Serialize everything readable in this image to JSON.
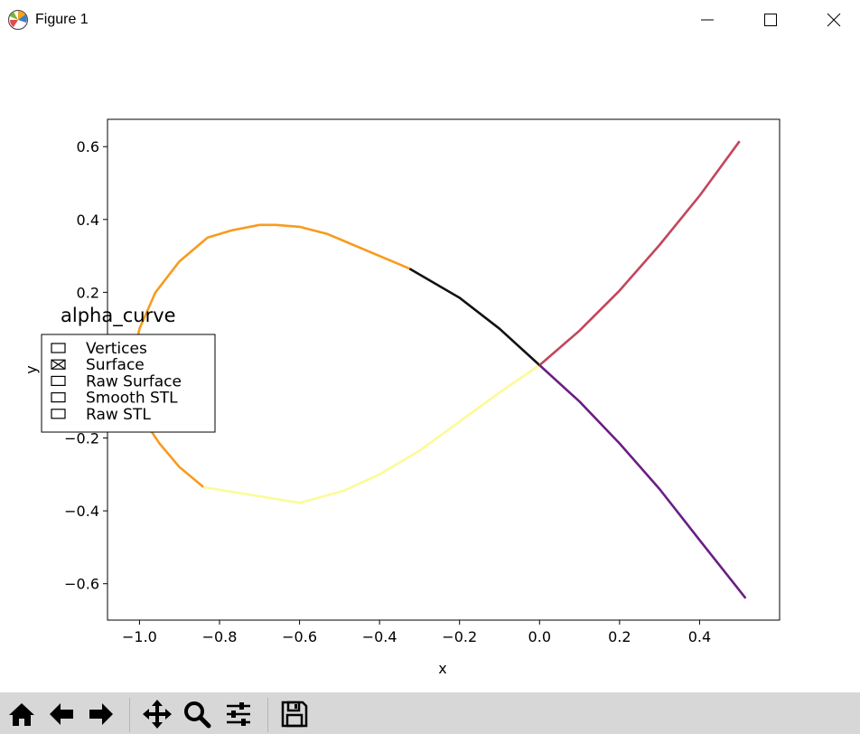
{
  "window": {
    "title": "Figure 1",
    "icons": [
      "matplotlib-logo-icon",
      "minimize-icon",
      "maximize-icon",
      "close-icon"
    ]
  },
  "toolbar": {
    "buttons": [
      "home-icon",
      "back-arrow-icon",
      "forward-arrow-icon",
      "pan-icon",
      "zoom-icon",
      "configure-subplots-icon",
      "save-icon"
    ]
  },
  "chart_data": {
    "type": "line",
    "title": "",
    "xlabel": "x",
    "ylabel": "y",
    "xlim": [
      -1.08,
      0.6
    ],
    "ylim": [
      -0.7,
      0.675
    ],
    "xticks": [
      -1.0,
      -0.8,
      -0.6,
      -0.4,
      -0.2,
      0.0,
      0.2,
      0.4
    ],
    "xtick_labels": [
      "−1.0",
      "−0.8",
      "−0.6",
      "−0.4",
      "−0.2",
      "0.0",
      "0.2",
      "0.4"
    ],
    "yticks": [
      0.6,
      0.4,
      0.2,
      -0.2,
      -0.4,
      -0.6
    ],
    "ytick_labels": [
      "0.6",
      "0.4",
      "0.2",
      "−0.2",
      "−0.4",
      "−0.6"
    ],
    "grid": false,
    "series": [
      {
        "color": "#f89b1e",
        "x": [
          -0.325,
          -0.53,
          -0.6,
          -0.66,
          -0.7,
          -0.77,
          -0.83,
          -0.9,
          -0.96,
          -1.0,
          -1.02,
          -1.02,
          -0.99,
          -0.95,
          -0.9,
          -0.84
        ],
        "y": [
          0.265,
          0.36,
          0.38,
          0.385,
          0.385,
          0.37,
          0.35,
          0.285,
          0.2,
          0.1,
          0.0,
          -0.1,
          -0.15,
          -0.215,
          -0.28,
          -0.335
        ]
      },
      {
        "color": "#fbfb98",
        "x": [
          -0.84,
          -0.6,
          -0.49,
          -0.4,
          -0.3,
          -0.2,
          -0.1,
          0.0
        ],
        "y": [
          -0.335,
          -0.378,
          -0.345,
          -0.3,
          -0.235,
          -0.155,
          -0.075,
          0.0
        ]
      },
      {
        "color": "#111111",
        "x": [
          -0.325,
          -0.2,
          -0.1,
          0.0
        ],
        "y": [
          0.265,
          0.185,
          0.1,
          0.0
        ]
      },
      {
        "color": "#c2465d",
        "x": [
          0.0,
          0.1,
          0.2,
          0.3,
          0.4,
          0.5
        ],
        "y": [
          0.0,
          0.095,
          0.205,
          0.33,
          0.465,
          0.615
        ]
      },
      {
        "color": "#6a1e85",
        "x": [
          0.0,
          0.1,
          0.2,
          0.3,
          0.4,
          0.515
        ],
        "y": [
          0.0,
          -0.1,
          -0.215,
          -0.34,
          -0.48,
          -0.64
        ]
      }
    ],
    "legend": {
      "title": "alpha_curve",
      "placement": "left, overlapping plot",
      "entries": [
        {
          "label": "Vertices",
          "checked": false
        },
        {
          "label": "Surface",
          "checked": true
        },
        {
          "label": "Raw Surface",
          "checked": false
        },
        {
          "label": "Smooth STL",
          "checked": false
        },
        {
          "label": "Raw STL",
          "checked": false
        }
      ]
    }
  }
}
